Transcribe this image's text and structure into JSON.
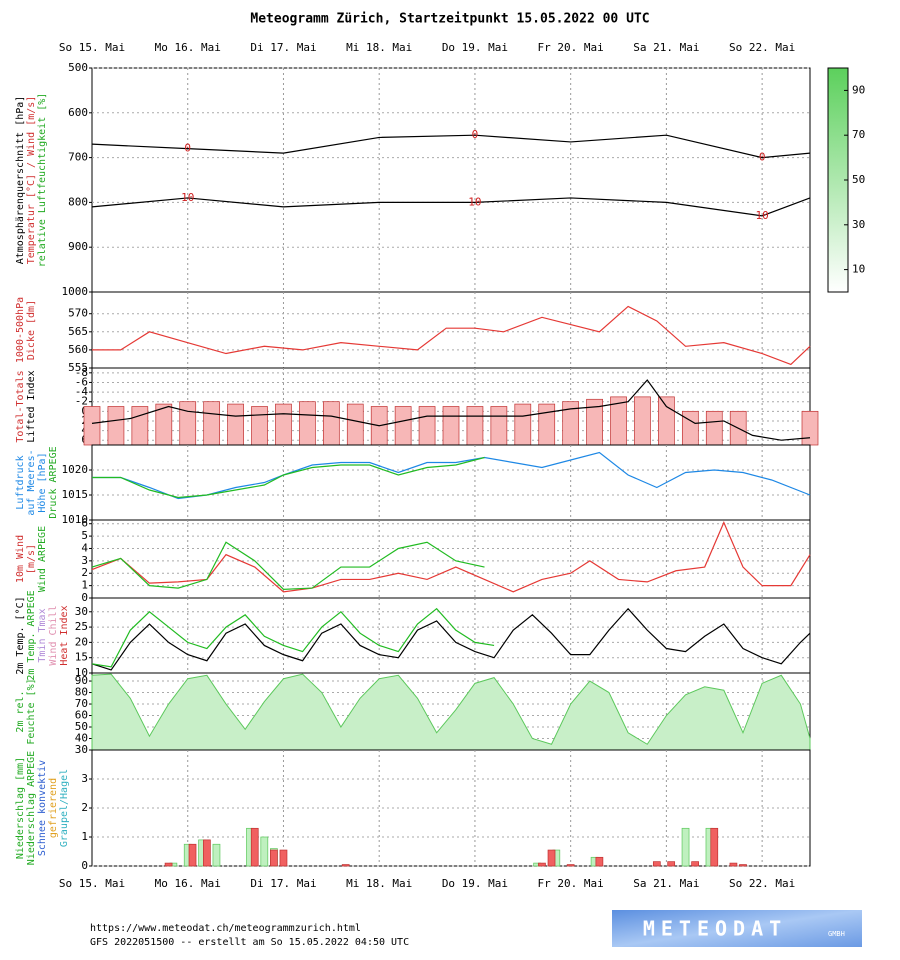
{
  "title": "Meteogramm Zürich, Startzeitpunkt 15.05.2022 00 UTC",
  "time_axis": {
    "xlim": [
      0,
      7.5
    ],
    "xticks": [
      {
        "value": 0,
        "label": "So 15. Mai"
      },
      {
        "value": 1,
        "label": "Mo 16. Mai"
      },
      {
        "value": 2,
        "label": "Di 17. Mai"
      },
      {
        "value": 3,
        "label": "Mi 18. Mai"
      },
      {
        "value": 4,
        "label": "Do 19. Mai"
      },
      {
        "value": 5,
        "label": "Fr 20. Mai"
      },
      {
        "value": 6,
        "label": "Sa 21. Mai"
      },
      {
        "value": 7,
        "label": "So 22. Mai"
      }
    ]
  },
  "chart_data": [
    {
      "type": "contour",
      "ylim": [
        1000,
        500
      ],
      "yticks": [
        500,
        600,
        700,
        800,
        900,
        1000
      ],
      "grid": true,
      "ylabels": [
        {
          "text": "Atmosphärenquerschnitt [hPa]",
          "color": "#000000"
        },
        {
          "text": "Temperatur [°C] / Wind [m/s]",
          "color": "#d03030"
        },
        {
          "text": "relative Luftfeuchtigkeit [%]",
          "color": "#22aa22"
        }
      ],
      "colorbar": {
        "lim": [
          0,
          100
        ],
        "ticks": [
          10,
          30,
          50,
          70,
          90
        ]
      },
      "series": [
        {
          "name": "0",
          "color": "#000000",
          "x": [
            0,
            1,
            2,
            3,
            4,
            5,
            6,
            7,
            7.5
          ],
          "values": [
            670,
            680,
            690,
            655,
            650,
            665,
            650,
            700,
            690
          ]
        },
        {
          "name": "10",
          "color": "#000000",
          "x": [
            0,
            1,
            2,
            3,
            4,
            5,
            6,
            7,
            7.5
          ],
          "values": [
            810,
            790,
            810,
            800,
            800,
            790,
            800,
            830,
            790
          ]
        }
      ]
    },
    {
      "type": "line",
      "ylim": [
        555,
        576
      ],
      "yticks": [
        555,
        560,
        565,
        570
      ],
      "grid": true,
      "ylabels": [
        {
          "text": "1000-500hPa",
          "color": "#d03030"
        },
        {
          "text": "Dicke [dm]",
          "color": "#d03030"
        }
      ],
      "series": [
        {
          "type": "line",
          "color": "#e53935",
          "x": [
            0,
            0.3,
            0.6,
            1,
            1.4,
            1.8,
            2.2,
            2.6,
            3,
            3.4,
            3.7,
            4,
            4.3,
            4.7,
            5,
            5.3,
            5.6,
            5.9,
            6.2,
            6.6,
            7,
            7.3,
            7.5
          ],
          "values": [
            560,
            560,
            565,
            562,
            559,
            561,
            560,
            562,
            561,
            560,
            566,
            566,
            565,
            569,
            567,
            565,
            572,
            568,
            561,
            562,
            559,
            556,
            561
          ]
        }
      ]
    },
    {
      "type": "combo",
      "ylim": [
        7,
        -9
      ],
      "yticks": [
        -8,
        -6,
        -4,
        -2,
        0,
        2,
        4,
        6
      ],
      "y2lim": [
        38,
        54
      ],
      "grid": true,
      "ylabels": [
        {
          "text": "Total-Totals",
          "color": "#d03030"
        },
        {
          "text": "Lifted Index",
          "color": "#000000"
        }
      ],
      "series": [
        {
          "type": "bar",
          "axis": "y2",
          "color": "#f7b7b7",
          "x": [
            0,
            0.25,
            0.5,
            0.75,
            1,
            1.25,
            1.5,
            1.75,
            2,
            2.25,
            2.5,
            2.75,
            3,
            3.25,
            3.5,
            3.75,
            4,
            4.25,
            4.5,
            4.75,
            5,
            5.25,
            5.5,
            5.75,
            6,
            6.25,
            6.5,
            6.75,
            7,
            7.25,
            7.5
          ],
          "values": [
            46,
            46,
            46,
            46.5,
            47,
            47,
            46.5,
            46,
            46.5,
            47,
            47,
            46.5,
            46,
            46,
            46,
            46,
            46,
            46,
            46.5,
            46.5,
            47,
            47.5,
            48,
            48,
            48,
            45,
            45,
            45,
            null,
            null,
            45
          ]
        },
        {
          "type": "line",
          "color": "#000000",
          "x": [
            0,
            0.4,
            0.8,
            1,
            1.5,
            2,
            2.5,
            3,
            3.5,
            4,
            4.5,
            5,
            5.3,
            5.6,
            5.8,
            6,
            6.3,
            6.6,
            6.9,
            7.2,
            7.5
          ],
          "values": [
            2.5,
            1.5,
            -1,
            0,
            1,
            0.5,
            1,
            3,
            1,
            1,
            1,
            -0.5,
            -1,
            -2,
            -6.5,
            -1,
            2.5,
            2,
            5,
            6,
            5.5
          ]
        }
      ]
    },
    {
      "type": "line",
      "ylim": [
        1010,
        1025
      ],
      "yticks": [
        1010,
        1015,
        1020
      ],
      "grid": true,
      "ylabels": [
        {
          "text": "Luftdruck",
          "color": "#1e88e5"
        },
        {
          "text": "auf Meeres-",
          "color": "#1e88e5"
        },
        {
          "text": "Höhe [hPa]",
          "color": "#1e88e5"
        },
        {
          "text": "Druck ARPEGE",
          "color": "#22aa22"
        }
      ],
      "series": [
        {
          "type": "line",
          "color": "#1e88e5",
          "x": [
            0,
            0.3,
            0.6,
            0.9,
            1.2,
            1.5,
            1.8,
            2.0,
            2.3,
            2.6,
            2.9,
            3.2,
            3.5,
            3.8,
            4.1,
            4.4,
            4.7,
            5.0,
            5.3,
            5.6,
            5.9,
            6.2,
            6.5,
            6.8,
            7.1,
            7.5
          ],
          "values": [
            1018.5,
            1018.5,
            1016.5,
            1014.3,
            1015,
            1016.5,
            1017.5,
            1019,
            1021,
            1021.5,
            1021.5,
            1019.5,
            1021.5,
            1021.5,
            1022.5,
            1021.5,
            1020.5,
            1022,
            1023.5,
            1019,
            1016.5,
            1019.5,
            1020,
            1019.5,
            1018,
            1015
          ]
        },
        {
          "type": "line",
          "color": "#22bb22",
          "x": [
            0,
            0.3,
            0.6,
            0.9,
            1.2,
            1.5,
            1.8,
            2.0,
            2.3,
            2.6,
            2.9,
            3.2,
            3.5,
            3.8,
            4.1
          ],
          "values": [
            1018.5,
            1018.5,
            1016,
            1014.5,
            1015,
            1016,
            1017,
            1019,
            1020.5,
            1021,
            1021,
            1019,
            1020.5,
            1021,
            1022.5
          ]
        }
      ]
    },
    {
      "type": "line",
      "ylim": [
        0,
        6.3
      ],
      "yticks": [
        0,
        1,
        2,
        3,
        4,
        5,
        6
      ],
      "grid": true,
      "ylabels": [
        {
          "text": "10m Wind",
          "color": "#d03030"
        },
        {
          "text": "[m/s]",
          "color": "#d03030"
        },
        {
          "text": "Wind ARPEGE",
          "color": "#22aa22"
        }
      ],
      "series": [
        {
          "type": "line",
          "color": "#e53935",
          "x": [
            0,
            0.3,
            0.6,
            0.9,
            1.2,
            1.4,
            1.7,
            2.0,
            2.3,
            2.6,
            2.9,
            3.2,
            3.5,
            3.8,
            4.1,
            4.4,
            4.7,
            5.0,
            5.2,
            5.5,
            5.8,
            6.1,
            6.4,
            6.6,
            6.8,
            7.0,
            7.3,
            7.5
          ],
          "values": [
            2.3,
            3.2,
            1.2,
            1.3,
            1.5,
            3.5,
            2.5,
            0.5,
            0.8,
            1.5,
            1.5,
            2,
            1.5,
            2.5,
            1.5,
            0.5,
            1.5,
            2,
            3,
            1.5,
            1.3,
            2.2,
            2.5,
            6.1,
            2.5,
            1,
            1,
            3.5
          ]
        },
        {
          "type": "line",
          "color": "#22bb22",
          "x": [
            0,
            0.3,
            0.6,
            0.9,
            1.2,
            1.4,
            1.7,
            2.0,
            2.3,
            2.6,
            2.9,
            3.2,
            3.5,
            3.8,
            4.1
          ],
          "values": [
            2.5,
            3.2,
            1,
            0.8,
            1.5,
            4.5,
            3,
            0.7,
            0.8,
            2.5,
            2.5,
            4,
            4.5,
            3,
            2.5
          ]
        }
      ]
    },
    {
      "type": "line",
      "ylim": [
        10,
        34.5
      ],
      "yticks": [
        10,
        15,
        20,
        25,
        30
      ],
      "grid": true,
      "ylabels": [
        {
          "text": "2m Temp. [°C]",
          "color": "#000000"
        },
        {
          "text": "2m Temp. ARPEGE",
          "color": "#22aa22"
        },
        {
          "text": "Tmin Tmax",
          "color": "#b08ad8"
        },
        {
          "text": "Wind Chill",
          "color": "#e090b0"
        },
        {
          "text": "Heat Index",
          "color": "#d03030"
        }
      ],
      "series": [
        {
          "type": "line",
          "color": "#000000",
          "x": [
            0,
            0.2,
            0.4,
            0.6,
            0.8,
            1,
            1.2,
            1.4,
            1.6,
            1.8,
            2,
            2.2,
            2.4,
            2.6,
            2.8,
            3,
            3.2,
            3.4,
            3.6,
            3.8,
            4,
            4.2,
            4.4,
            4.6,
            4.8,
            5,
            5.2,
            5.4,
            5.6,
            5.8,
            6,
            6.2,
            6.4,
            6.6,
            6.8,
            7,
            7.2,
            7.4,
            7.5
          ],
          "values": [
            13,
            11,
            20,
            26,
            20,
            16,
            14,
            23,
            26,
            19,
            16,
            14,
            23,
            26,
            19,
            16,
            15,
            24,
            27,
            20,
            17,
            15,
            24,
            29,
            23,
            16,
            16,
            24,
            31,
            24,
            18,
            17,
            22,
            26,
            18,
            15,
            13,
            20,
            23
          ]
        },
        {
          "type": "line",
          "color": "#22bb22",
          "x": [
            0,
            0.2,
            0.4,
            0.6,
            0.8,
            1,
            1.2,
            1.4,
            1.6,
            1.8,
            2,
            2.2,
            2.4,
            2.6,
            2.8,
            3,
            3.2,
            3.4,
            3.6,
            3.8,
            4,
            4.2
          ],
          "values": [
            13,
            12,
            24,
            30,
            25,
            20,
            18,
            25,
            29,
            22,
            19,
            17,
            25,
            30,
            23,
            19,
            17,
            26,
            31,
            24,
            20,
            19
          ]
        }
      ]
    },
    {
      "type": "area",
      "ylim": [
        30,
        97
      ],
      "yticks": [
        30,
        40,
        50,
        60,
        70,
        80,
        90
      ],
      "grid": true,
      "ylabels": [
        {
          "text": "2m rel.",
          "color": "#22aa22"
        },
        {
          "text": "Feuchte [%]",
          "color": "#22aa22"
        }
      ],
      "series": [
        {
          "type": "area",
          "color": "#c8efc8",
          "x": [
            0,
            0.2,
            0.4,
            0.6,
            0.8,
            1,
            1.2,
            1.4,
            1.6,
            1.8,
            2,
            2.2,
            2.4,
            2.6,
            2.8,
            3,
            3.2,
            3.4,
            3.6,
            3.8,
            4,
            4.2,
            4.4,
            4.6,
            4.8,
            5,
            5.2,
            5.4,
            5.6,
            5.8,
            6,
            6.2,
            6.4,
            6.6,
            6.8,
            7,
            7.2,
            7.4,
            7.5
          ],
          "values": [
            95,
            96,
            75,
            42,
            70,
            92,
            95,
            70,
            48,
            72,
            92,
            96,
            80,
            50,
            75,
            92,
            95,
            75,
            45,
            65,
            88,
            93,
            70,
            40,
            35,
            70,
            90,
            80,
            45,
            35,
            60,
            78,
            85,
            82,
            45,
            88,
            95,
            70,
            40
          ]
        }
      ]
    },
    {
      "type": "bar",
      "ylim": [
        0,
        4
      ],
      "yticks": [
        0,
        1,
        2,
        3
      ],
      "grid": true,
      "ylabels": [
        {
          "text": "Niederschlag [mm]",
          "color": "#22aa22"
        },
        {
          "text": "Niederschlag ARPEGE",
          "color": "#22aa22"
        },
        {
          "text": "Schnee konvektiv",
          "color": "#3060d0"
        },
        {
          "text": "gefrierend",
          "color": "#e0a020"
        },
        {
          "text": "Graupel/Hagel",
          "color": "#30b0c0"
        }
      ],
      "series": [
        {
          "type": "bar",
          "color": "#bff0bf",
          "x": [
            0.85,
            1.0,
            1.15,
            1.3,
            1.65,
            1.8,
            1.9,
            4.65,
            4.85,
            5.25,
            6.2,
            6.45
          ],
          "values": [
            0.1,
            0.75,
            0.9,
            0.75,
            1.3,
            1.0,
            0.6,
            0.1,
            0.55,
            0.3,
            1.3,
            1.3
          ]
        },
        {
          "type": "bar",
          "color": "#f06060",
          "x": [
            0.8,
            1.05,
            1.2,
            1.7,
            1.9,
            2.0,
            2.65,
            4.7,
            4.8,
            5.0,
            5.3,
            5.9,
            6.05,
            6.3,
            6.5,
            6.7,
            6.8
          ],
          "values": [
            0.1,
            0.75,
            0.9,
            1.3,
            0.55,
            0.55,
            0.05,
            0.1,
            0.55,
            0.05,
            0.3,
            0.15,
            0.15,
            0.15,
            1.3,
            0.1,
            0.05
          ]
        }
      ]
    }
  ],
  "footer": {
    "url": "https://www.meteodat.ch/meteogrammzurich.html",
    "run": "GFS 2022051500 -- erstellt am So 15.05.2022 04:50 UTC"
  },
  "logo": {
    "name": "METEODAT",
    "suffix": "GMBH"
  }
}
